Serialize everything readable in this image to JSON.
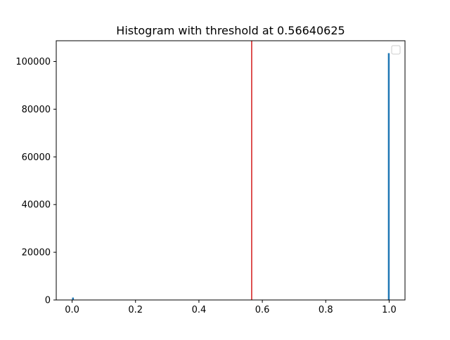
{
  "chart_data": {
    "type": "bar",
    "title": "Histogram with threshold at 0.56640625",
    "xlabel": "",
    "ylabel": "",
    "xlim": [
      -0.05,
      1.05
    ],
    "ylim": [
      0,
      108700
    ],
    "xticks": [
      0.0,
      0.2,
      0.4,
      0.6,
      0.8,
      1.0
    ],
    "xtick_labels": [
      "0.0",
      "0.2",
      "0.4",
      "0.6",
      "0.8",
      "1.0"
    ],
    "yticks": [
      0,
      20000,
      40000,
      60000,
      80000,
      100000
    ],
    "ytick_labels": [
      "0",
      "20000",
      "40000",
      "60000",
      "80000",
      "100000"
    ],
    "bins": [
      {
        "x_start": 0.0,
        "x_end": 0.00390625,
        "count": 1000
      },
      {
        "x_start": 0.99609375,
        "x_end": 1.0,
        "count": 103500
      }
    ],
    "threshold": 0.56640625,
    "legend": {
      "placement": "upper right",
      "entries": []
    },
    "grid": false,
    "colors": {
      "bars": "#1f77b4",
      "threshold": "#d62728",
      "axes": "#000000"
    }
  }
}
